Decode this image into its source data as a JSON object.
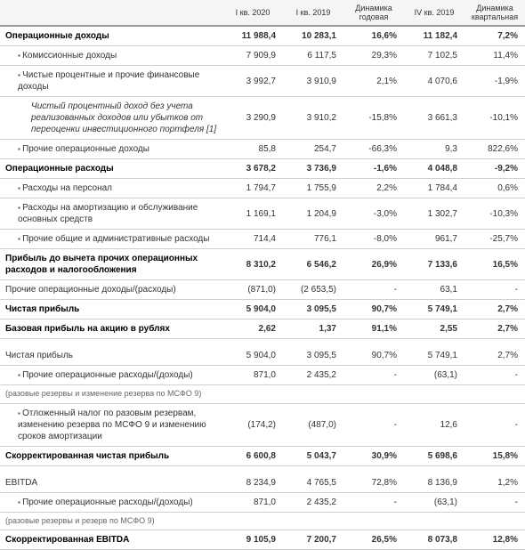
{
  "headers": [
    "",
    "I кв. 2020",
    "I кв. 2019",
    "Динамика годовая",
    "IV кв. 2019",
    "Динамика квартальная"
  ],
  "rows": [
    {
      "label": "Операционные доходы",
      "v": [
        "11 988,4",
        "10 283,1",
        "16,6%",
        "11 182,4",
        "7,2%"
      ],
      "bold": true,
      "indent": 0,
      "bullet": false
    },
    {
      "label": "Комиссионные доходы",
      "v": [
        "7 909,9",
        "6 117,5",
        "29,3%",
        "7 102,5",
        "11,4%"
      ],
      "bold": false,
      "indent": 1,
      "bullet": true
    },
    {
      "label": "Чистые процентные и прочие финансовые доходы",
      "v": [
        "3 992,7",
        "3 910,9",
        "2,1%",
        "4 070,6",
        "-1,9%"
      ],
      "bold": false,
      "indent": 1,
      "bullet": true
    },
    {
      "label": "Чистый процентный доход без учета реализованных доходов или убытков от переоценки инвестиционного портфеля [1]",
      "v": [
        "3 290,9",
        "3 910,2",
        "-15,8%",
        "3 661,3",
        "-10,1%"
      ],
      "bold": false,
      "indent": 2,
      "bullet": false,
      "italic": true
    },
    {
      "label": "Прочие операционные доходы",
      "v": [
        "85,8",
        "254,7",
        "-66,3%",
        "9,3",
        "822,6%"
      ],
      "bold": false,
      "indent": 1,
      "bullet": true
    },
    {
      "label": "Операционные расходы",
      "v": [
        "3 678,2",
        "3 736,9",
        "-1,6%",
        "4 048,8",
        "-9,2%"
      ],
      "bold": true,
      "indent": 0,
      "bullet": false
    },
    {
      "label": "Расходы на персонал",
      "v": [
        "1 794,7",
        "1 755,9",
        "2,2%",
        "1 784,4",
        "0,6%"
      ],
      "bold": false,
      "indent": 1,
      "bullet": true
    },
    {
      "label": "Расходы на амортизацию и обслуживание основных средств",
      "v": [
        "1 169,1",
        "1 204,9",
        "-3,0%",
        "1 302,7",
        "-10,3%"
      ],
      "bold": false,
      "indent": 1,
      "bullet": true
    },
    {
      "label": "Прочие общие и административные расходы",
      "v": [
        "714,4",
        "776,1",
        "-8,0%",
        "961,7",
        "-25,7%"
      ],
      "bold": false,
      "indent": 1,
      "bullet": true
    },
    {
      "label": "Прибыль до вычета прочих операционных расходов и налогообложения",
      "v": [
        "8 310,2",
        "6 546,2",
        "26,9%",
        "7 133,6",
        "16,5%"
      ],
      "bold": true,
      "indent": 0,
      "bullet": false
    },
    {
      "label": "Прочие операционные доходы/(расходы)",
      "v": [
        "(871,0)",
        "(2 653,5)",
        "-",
        "63,1",
        "-"
      ],
      "bold": false,
      "indent": 0,
      "bullet": false
    },
    {
      "label": "Чистая прибыль",
      "v": [
        "5 904,0",
        "3 095,5",
        "90,7%",
        "5 749,1",
        "2,7%"
      ],
      "bold": true,
      "indent": 0,
      "bullet": false
    },
    {
      "label": "Базовая прибыль на акцию в рублях",
      "v": [
        "2,62",
        "1,37",
        "91,1%",
        "2,55",
        "2,7%"
      ],
      "bold": true,
      "indent": 0,
      "bullet": false
    },
    {
      "label": "",
      "v": [
        "",
        "",
        "",
        "",
        ""
      ],
      "bold": false,
      "indent": 0,
      "bullet": false,
      "spacer": true
    },
    {
      "label": "Чистая прибыль",
      "v": [
        "5 904,0",
        "3 095,5",
        "90,7%",
        "5 749,1",
        "2,7%"
      ],
      "bold": false,
      "indent": 0,
      "bullet": false
    },
    {
      "label": "Прочие операционные расходы/(доходы)",
      "v": [
        "871,0",
        "2 435,2",
        "-",
        "(63,1)",
        "-"
      ],
      "bold": false,
      "indent": 1,
      "bullet": true
    },
    {
      "label": "(разовые резервы и изменение резерва по МСФО 9)",
      "v": [
        "",
        "",
        "",
        "",
        ""
      ],
      "bold": false,
      "indent": 0,
      "bullet": false,
      "note": true
    },
    {
      "label": "Отложенный налог по разовым резервам, изменению резерва по МСФО 9 и изменению сроков амортизации",
      "v": [
        "(174,2)",
        "(487,0)",
        "-",
        "12,6",
        "-"
      ],
      "bold": false,
      "indent": 1,
      "bullet": true
    },
    {
      "label": "Скорректированная чистая прибыль",
      "v": [
        "6 600,8",
        "5 043,7",
        "30,9%",
        "5 698,6",
        "15,8%"
      ],
      "bold": true,
      "indent": 0,
      "bullet": false
    },
    {
      "label": "",
      "v": [
        "",
        "",
        "",
        "",
        ""
      ],
      "bold": false,
      "indent": 0,
      "bullet": false,
      "spacer": true
    },
    {
      "label": "EBITDA",
      "v": [
        "8 234,9",
        "4 765,5",
        "72,8%",
        "8 136,9",
        "1,2%"
      ],
      "bold": false,
      "indent": 0,
      "bullet": false
    },
    {
      "label": "Прочие операционные расходы/(доходы)",
      "v": [
        "871,0",
        "2 435,2",
        "-",
        "(63,1)",
        "-"
      ],
      "bold": false,
      "indent": 1,
      "bullet": true
    },
    {
      "label": "(разовые резервы и резерв по МСФО 9)",
      "v": [
        "",
        "",
        "",
        "",
        ""
      ],
      "bold": false,
      "indent": 0,
      "bullet": false,
      "note": true
    },
    {
      "label": "Скорректированная EBITDA",
      "v": [
        "9 105,9",
        "7 200,7",
        "26,5%",
        "8 073,8",
        "12,8%"
      ],
      "bold": true,
      "indent": 0,
      "bullet": false
    }
  ]
}
